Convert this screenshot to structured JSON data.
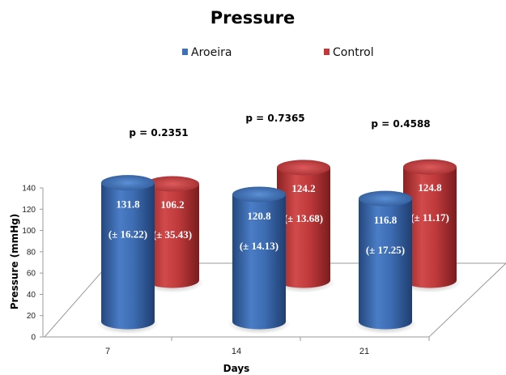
{
  "chart_data": {
    "type": "bar",
    "title": "Pressure",
    "xlabel": "Days",
    "ylabel": "Pressure (mmHg)",
    "categories": [
      "7",
      "14",
      "21"
    ],
    "ylim": [
      0,
      140
    ],
    "yticks": [
      "0",
      "20",
      "40",
      "60",
      "80",
      "100",
      "120",
      "140"
    ],
    "legend_position": "top",
    "series": [
      {
        "name": "Aroeira",
        "color": "#3f6fb5",
        "values": [
          131.8,
          120.8,
          116.8
        ],
        "value_labels": [
          "131.8",
          "120.8",
          "116.8"
        ],
        "sd_labels": [
          "(± 16.22)",
          "(± 14.13)",
          "(± 17.25)"
        ]
      },
      {
        "name": "Control",
        "color": "#c0393b",
        "values": [
          106.2,
          124.2,
          124.8
        ],
        "value_labels": [
          "106.2",
          "124.2",
          "124.8"
        ],
        "sd_labels": [
          "(± 35.43)",
          "(± 13.68)",
          "(± 11.17)"
        ]
      }
    ],
    "p_values": [
      "p = 0.2351",
      "p = 0.7365",
      "p = 0.4588"
    ]
  }
}
